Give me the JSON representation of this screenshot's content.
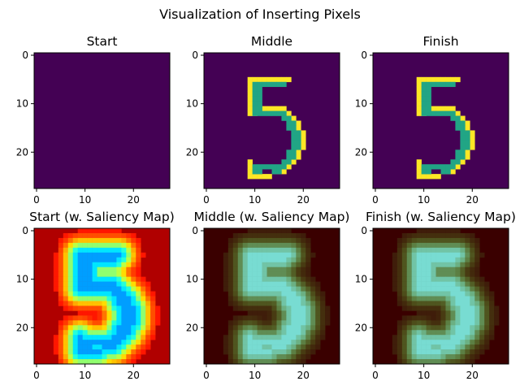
{
  "figure": {
    "title": "Visualization of Inserting Pixels"
  },
  "chart_data": [
    {
      "type": "heatmap",
      "title": "Start",
      "row": 0,
      "col": 0,
      "colormap": "viridis",
      "saliency_overlay": false,
      "xticks": [
        0,
        10,
        20
      ],
      "yticks": [
        0,
        10,
        20
      ],
      "xlim": [
        -0.5,
        27.5
      ],
      "ylim": [
        27.5,
        -0.5
      ],
      "grid": false
    },
    {
      "type": "heatmap",
      "title": "Middle",
      "row": 0,
      "col": 1,
      "colormap": "viridis",
      "saliency_overlay": false,
      "xticks": [
        0,
        10,
        20
      ],
      "yticks": [
        0,
        10,
        20
      ],
      "xlim": [
        -0.5,
        27.5
      ],
      "ylim": [
        27.5,
        -0.5
      ],
      "grid": false
    },
    {
      "type": "heatmap",
      "title": "Finish",
      "row": 0,
      "col": 2,
      "colormap": "viridis",
      "saliency_overlay": false,
      "xticks": [
        0,
        10,
        20
      ],
      "yticks": [
        0,
        10,
        20
      ],
      "xlim": [
        -0.5,
        27.5
      ],
      "ylim": [
        27.5,
        -0.5
      ],
      "grid": false
    },
    {
      "type": "heatmap",
      "title": "Start (w. Saliency Map)",
      "row": 1,
      "col": 0,
      "colormap": "jet",
      "saliency_overlay": true,
      "xticks": [
        0,
        10,
        20
      ],
      "yticks": [
        0,
        10,
        20
      ],
      "xlim": [
        -0.5,
        27.5
      ],
      "ylim": [
        27.5,
        -0.5
      ],
      "grid": false
    },
    {
      "type": "heatmap",
      "title": "Middle (w. Saliency Map)",
      "row": 1,
      "col": 1,
      "colormap": "jet",
      "saliency_overlay": true,
      "xticks": [
        0,
        10,
        20
      ],
      "yticks": [
        0,
        10,
        20
      ],
      "xlim": [
        -0.5,
        27.5
      ],
      "ylim": [
        27.5,
        -0.5
      ],
      "grid": false
    },
    {
      "type": "heatmap",
      "title": "Finish (w. Saliency Map)",
      "row": 1,
      "col": 2,
      "colormap": "jet",
      "saliency_overlay": true,
      "xticks": [
        0,
        10,
        20
      ],
      "yticks": [
        0,
        10,
        20
      ],
      "xlim": [
        -0.5,
        27.5
      ],
      "ylim": [
        27.5,
        -0.5
      ],
      "grid": false
    }
  ],
  "colors": {
    "background": "#440154",
    "digit_outline": "#fde725",
    "digit_fill": "#21a585",
    "saliency_low": "#7f0000",
    "saliency_high": "#0000c8"
  }
}
